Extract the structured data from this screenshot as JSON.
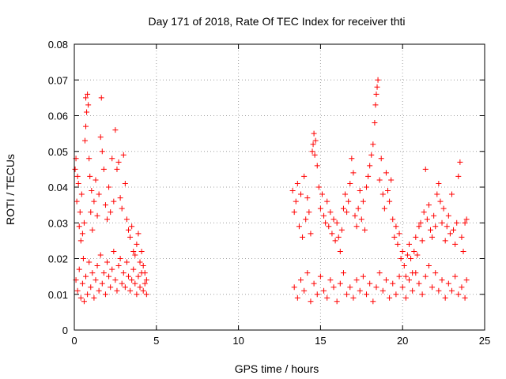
{
  "chart_data": {
    "type": "scatter",
    "title": "Day 171 of 2018, Rate Of TEC Index for receiver thti",
    "xlabel": "GPS time / hours",
    "ylabel": "ROTI / TECUs",
    "xlim": [
      0,
      25
    ],
    "ylim": [
      0,
      0.08
    ],
    "xticks": [
      "0",
      "5",
      "10",
      "15",
      "20",
      "25"
    ],
    "yticks": [
      "0",
      "0.01",
      "0.02",
      "0.03",
      "0.04",
      "0.05",
      "0.06",
      "0.07",
      "0.08"
    ],
    "grid": true,
    "marker": "plus",
    "series": [
      {
        "name": "ROTI",
        "color": "#ff0000",
        "points": [
          [
            0.05,
            0.045
          ],
          [
            0.1,
            0.048
          ],
          [
            0.15,
            0.036
          ],
          [
            0.2,
            0.043
          ],
          [
            0.25,
            0.041
          ],
          [
            0.3,
            0.029
          ],
          [
            0.35,
            0.033
          ],
          [
            0.4,
            0.025
          ],
          [
            0.45,
            0.038
          ],
          [
            0.5,
            0.027
          ],
          [
            0.55,
            0.02
          ],
          [
            0.6,
            0.03
          ],
          [
            0.65,
            0.053
          ],
          [
            0.7,
            0.057
          ],
          [
            0.7,
            0.065
          ],
          [
            0.75,
            0.061
          ],
          [
            0.8,
            0.066
          ],
          [
            0.85,
            0.063
          ],
          [
            0.9,
            0.048
          ],
          [
            0.95,
            0.043
          ],
          [
            1.0,
            0.033
          ],
          [
            1.05,
            0.039
          ],
          [
            1.1,
            0.028
          ],
          [
            1.2,
            0.036
          ],
          [
            1.3,
            0.042
          ],
          [
            1.4,
            0.032
          ],
          [
            1.5,
            0.038
          ],
          [
            1.6,
            0.054
          ],
          [
            1.65,
            0.065
          ],
          [
            1.7,
            0.05
          ],
          [
            1.8,
            0.045
          ],
          [
            1.9,
            0.035
          ],
          [
            2.0,
            0.031
          ],
          [
            2.1,
            0.04
          ],
          [
            2.2,
            0.033
          ],
          [
            2.3,
            0.048
          ],
          [
            2.4,
            0.036
          ],
          [
            2.5,
            0.056
          ],
          [
            2.6,
            0.045
          ],
          [
            2.7,
            0.047
          ],
          [
            2.8,
            0.037
          ],
          [
            2.9,
            0.034
          ],
          [
            3.0,
            0.049
          ],
          [
            3.1,
            0.041
          ],
          [
            3.2,
            0.031
          ],
          [
            3.3,
            0.028
          ],
          [
            3.4,
            0.026
          ],
          [
            3.5,
            0.029
          ],
          [
            3.6,
            0.022
          ],
          [
            3.7,
            0.021
          ],
          [
            3.8,
            0.024
          ],
          [
            3.9,
            0.027
          ],
          [
            4.0,
            0.019
          ],
          [
            4.1,
            0.022
          ],
          [
            4.2,
            0.018
          ],
          [
            4.3,
            0.016
          ],
          [
            4.4,
            0.014
          ],
          [
            13.3,
            0.039
          ],
          [
            13.4,
            0.033
          ],
          [
            13.5,
            0.036
          ],
          [
            13.6,
            0.041
          ],
          [
            13.7,
            0.029
          ],
          [
            13.8,
            0.038
          ],
          [
            13.9,
            0.026
          ],
          [
            14.0,
            0.043
          ],
          [
            14.1,
            0.031
          ],
          [
            14.2,
            0.037
          ],
          [
            14.3,
            0.033
          ],
          [
            14.4,
            0.027
          ],
          [
            14.5,
            0.05
          ],
          [
            14.55,
            0.052
          ],
          [
            14.6,
            0.055
          ],
          [
            14.65,
            0.049
          ],
          [
            14.7,
            0.053
          ],
          [
            14.8,
            0.046
          ],
          [
            14.9,
            0.04
          ],
          [
            15.0,
            0.034
          ],
          [
            15.1,
            0.038
          ],
          [
            15.2,
            0.032
          ],
          [
            15.3,
            0.03
          ],
          [
            15.4,
            0.036
          ],
          [
            15.5,
            0.029
          ],
          [
            15.6,
            0.033
          ],
          [
            15.7,
            0.027
          ],
          [
            15.8,
            0.031
          ],
          [
            15.9,
            0.025
          ],
          [
            16.0,
            0.03
          ],
          [
            16.1,
            0.026
          ],
          [
            16.2,
            0.022
          ],
          [
            16.3,
            0.028
          ],
          [
            16.4,
            0.034
          ],
          [
            16.5,
            0.038
          ],
          [
            16.6,
            0.033
          ],
          [
            16.7,
            0.036
          ],
          [
            16.8,
            0.041
          ],
          [
            16.9,
            0.048
          ],
          [
            17.0,
            0.044
          ],
          [
            17.1,
            0.032
          ],
          [
            17.2,
            0.029
          ],
          [
            17.3,
            0.034
          ],
          [
            17.4,
            0.039
          ],
          [
            17.5,
            0.031
          ],
          [
            17.6,
            0.036
          ],
          [
            17.7,
            0.028
          ],
          [
            17.8,
            0.04
          ],
          [
            17.9,
            0.043
          ],
          [
            18.0,
            0.046
          ],
          [
            18.1,
            0.049
          ],
          [
            18.2,
            0.052
          ],
          [
            18.3,
            0.058
          ],
          [
            18.35,
            0.063
          ],
          [
            18.4,
            0.066
          ],
          [
            18.45,
            0.068
          ],
          [
            18.5,
            0.07
          ],
          [
            18.6,
            0.042
          ],
          [
            18.7,
            0.048
          ],
          [
            18.8,
            0.038
          ],
          [
            18.9,
            0.034
          ],
          [
            19.0,
            0.044
          ],
          [
            19.1,
            0.039
          ],
          [
            19.2,
            0.036
          ],
          [
            19.3,
            0.042
          ],
          [
            19.4,
            0.031
          ],
          [
            19.5,
            0.026
          ],
          [
            19.6,
            0.029
          ],
          [
            19.7,
            0.024
          ],
          [
            19.8,
            0.027
          ],
          [
            19.9,
            0.02
          ],
          [
            20.0,
            0.022
          ],
          [
            20.1,
            0.018
          ],
          [
            20.2,
            0.015
          ],
          [
            20.3,
            0.021
          ],
          [
            20.4,
            0.024
          ],
          [
            20.5,
            0.02
          ],
          [
            20.6,
            0.016
          ],
          [
            20.7,
            0.022
          ],
          [
            20.8,
            0.026
          ],
          [
            20.9,
            0.021
          ],
          [
            21.0,
            0.029
          ],
          [
            21.1,
            0.03
          ],
          [
            21.2,
            0.025
          ],
          [
            21.3,
            0.033
          ],
          [
            21.4,
            0.045
          ],
          [
            21.5,
            0.031
          ],
          [
            21.6,
            0.035
          ],
          [
            21.7,
            0.028
          ],
          [
            21.8,
            0.026
          ],
          [
            21.9,
            0.032
          ],
          [
            22.0,
            0.029
          ],
          [
            22.1,
            0.038
          ],
          [
            22.2,
            0.041
          ],
          [
            22.3,
            0.036
          ],
          [
            22.4,
            0.03
          ],
          [
            22.5,
            0.034
          ],
          [
            22.6,
            0.025
          ],
          [
            22.7,
            0.029
          ],
          [
            22.8,
            0.032
          ],
          [
            22.9,
            0.027
          ],
          [
            23.0,
            0.038
          ],
          [
            23.1,
            0.028
          ],
          [
            23.2,
            0.024
          ],
          [
            23.3,
            0.03
          ],
          [
            23.4,
            0.043
          ],
          [
            23.5,
            0.047
          ],
          [
            23.6,
            0.026
          ],
          [
            23.7,
            0.022
          ],
          [
            23.8,
            0.03
          ],
          [
            23.9,
            0.031
          ],
          [
            0.1,
            0.014
          ],
          [
            0.2,
            0.011
          ],
          [
            0.3,
            0.017
          ],
          [
            0.4,
            0.009
          ],
          [
            0.5,
            0.013
          ],
          [
            0.6,
            0.008
          ],
          [
            0.7,
            0.015
          ],
          [
            0.8,
            0.01
          ],
          [
            0.9,
            0.019
          ],
          [
            1.0,
            0.012
          ],
          [
            1.1,
            0.016
          ],
          [
            1.2,
            0.009
          ],
          [
            1.3,
            0.014
          ],
          [
            1.4,
            0.018
          ],
          [
            1.5,
            0.011
          ],
          [
            1.6,
            0.021
          ],
          [
            1.7,
            0.013
          ],
          [
            1.8,
            0.016
          ],
          [
            1.9,
            0.01
          ],
          [
            2.0,
            0.019
          ],
          [
            2.1,
            0.015
          ],
          [
            2.2,
            0.012
          ],
          [
            2.3,
            0.017
          ],
          [
            2.4,
            0.022
          ],
          [
            2.5,
            0.014
          ],
          [
            2.6,
            0.011
          ],
          [
            2.7,
            0.018
          ],
          [
            2.8,
            0.02
          ],
          [
            2.9,
            0.013
          ],
          [
            3.0,
            0.016
          ],
          [
            3.1,
            0.012
          ],
          [
            3.2,
            0.019
          ],
          [
            3.3,
            0.015
          ],
          [
            3.4,
            0.011
          ],
          [
            3.5,
            0.014
          ],
          [
            3.6,
            0.017
          ],
          [
            3.7,
            0.013
          ],
          [
            3.8,
            0.01
          ],
          [
            3.9,
            0.015
          ],
          [
            4.0,
            0.012
          ],
          [
            4.1,
            0.016
          ],
          [
            4.2,
            0.011
          ],
          [
            4.3,
            0.013
          ],
          [
            4.4,
            0.01
          ],
          [
            13.4,
            0.012
          ],
          [
            13.6,
            0.009
          ],
          [
            13.8,
            0.014
          ],
          [
            14.0,
            0.011
          ],
          [
            14.2,
            0.016
          ],
          [
            14.4,
            0.008
          ],
          [
            14.6,
            0.013
          ],
          [
            14.8,
            0.01
          ],
          [
            15.0,
            0.015
          ],
          [
            15.2,
            0.011
          ],
          [
            15.4,
            0.009
          ],
          [
            15.6,
            0.014
          ],
          [
            15.8,
            0.012
          ],
          [
            16.0,
            0.008
          ],
          [
            16.2,
            0.013
          ],
          [
            16.4,
            0.016
          ],
          [
            16.6,
            0.01
          ],
          [
            16.8,
            0.012
          ],
          [
            17.0,
            0.009
          ],
          [
            17.2,
            0.014
          ],
          [
            17.4,
            0.011
          ],
          [
            17.6,
            0.015
          ],
          [
            17.8,
            0.01
          ],
          [
            18.0,
            0.013
          ],
          [
            18.2,
            0.008
          ],
          [
            18.4,
            0.012
          ],
          [
            18.6,
            0.016
          ],
          [
            18.8,
            0.011
          ],
          [
            19.0,
            0.014
          ],
          [
            19.2,
            0.009
          ],
          [
            19.4,
            0.013
          ],
          [
            19.6,
            0.01
          ],
          [
            19.8,
            0.015
          ],
          [
            20.0,
            0.012
          ],
          [
            20.2,
            0.009
          ],
          [
            20.4,
            0.014
          ],
          [
            20.6,
            0.011
          ],
          [
            20.8,
            0.016
          ],
          [
            21.0,
            0.013
          ],
          [
            21.2,
            0.01
          ],
          [
            21.4,
            0.015
          ],
          [
            21.6,
            0.018
          ],
          [
            21.8,
            0.012
          ],
          [
            22.0,
            0.016
          ],
          [
            22.2,
            0.011
          ],
          [
            22.4,
            0.014
          ],
          [
            22.6,
            0.009
          ],
          [
            22.8,
            0.013
          ],
          [
            23.0,
            0.011
          ],
          [
            23.2,
            0.015
          ],
          [
            23.4,
            0.01
          ],
          [
            23.6,
            0.012
          ],
          [
            23.8,
            0.009
          ],
          [
            23.9,
            0.014
          ]
        ]
      }
    ]
  }
}
